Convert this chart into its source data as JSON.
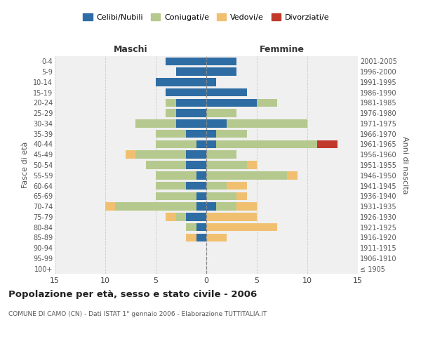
{
  "age_groups": [
    "100+",
    "95-99",
    "90-94",
    "85-89",
    "80-84",
    "75-79",
    "70-74",
    "65-69",
    "60-64",
    "55-59",
    "50-54",
    "45-49",
    "40-44",
    "35-39",
    "30-34",
    "25-29",
    "20-24",
    "15-19",
    "10-14",
    "5-9",
    "0-4"
  ],
  "birth_years": [
    "≤ 1905",
    "1906-1910",
    "1911-1915",
    "1916-1920",
    "1921-1925",
    "1926-1930",
    "1931-1935",
    "1936-1940",
    "1941-1945",
    "1946-1950",
    "1951-1955",
    "1956-1960",
    "1961-1965",
    "1966-1970",
    "1971-1975",
    "1976-1980",
    "1981-1985",
    "1986-1990",
    "1991-1995",
    "1996-2000",
    "2001-2005"
  ],
  "colors": {
    "celibi": "#2e6da4",
    "coniugati": "#b5c98e",
    "vedovi": "#f0c070",
    "divorziati": "#c0392b"
  },
  "maschi": {
    "celibi": [
      0,
      0,
      0,
      1,
      1,
      2,
      1,
      1,
      2,
      1,
      2,
      2,
      1,
      2,
      3,
      3,
      3,
      4,
      5,
      3,
      4
    ],
    "coniugati": [
      0,
      0,
      0,
      0,
      1,
      1,
      8,
      4,
      3,
      4,
      4,
      5,
      4,
      3,
      4,
      1,
      1,
      0,
      0,
      0,
      0
    ],
    "vedovi": [
      0,
      0,
      0,
      1,
      0,
      1,
      1,
      0,
      0,
      0,
      0,
      1,
      0,
      0,
      0,
      0,
      0,
      0,
      0,
      0,
      0
    ],
    "divorziati": [
      0,
      0,
      0,
      0,
      0,
      0,
      0,
      0,
      0,
      0,
      0,
      0,
      0,
      0,
      0,
      0,
      0,
      0,
      0,
      0,
      0
    ]
  },
  "femmine": {
    "celibi": [
      0,
      0,
      0,
      0,
      0,
      0,
      1,
      0,
      0,
      0,
      0,
      0,
      1,
      1,
      2,
      0,
      5,
      4,
      1,
      3,
      3
    ],
    "coniugati": [
      0,
      0,
      0,
      0,
      0,
      0,
      2,
      3,
      2,
      8,
      4,
      3,
      10,
      3,
      8,
      3,
      2,
      0,
      0,
      0,
      0
    ],
    "vedovi": [
      0,
      0,
      0,
      2,
      7,
      5,
      2,
      1,
      2,
      1,
      1,
      0,
      0,
      0,
      0,
      0,
      0,
      0,
      0,
      0,
      0
    ],
    "divorziati": [
      0,
      0,
      0,
      0,
      0,
      0,
      0,
      0,
      0,
      0,
      0,
      0,
      2,
      0,
      0,
      0,
      0,
      0,
      0,
      0,
      0
    ]
  },
  "xlim": 15,
  "title": "Popolazione per età, sesso e stato civile - 2006",
  "subtitle": "COMUNE DI CAMO (CN) - Dati ISTAT 1° gennaio 2006 - Elaborazione TUTTITALIA.IT",
  "ylabel_left": "Fasce di età",
  "ylabel_right": "Anni di nascita",
  "xlabel_maschi": "Maschi",
  "xlabel_femmine": "Femmine",
  "legend_labels": [
    "Celibi/Nubili",
    "Coniugati/e",
    "Vedovi/e",
    "Divorziati/e"
  ],
  "bg_color": "#f0f0f0",
  "grid_color": "#cccccc"
}
